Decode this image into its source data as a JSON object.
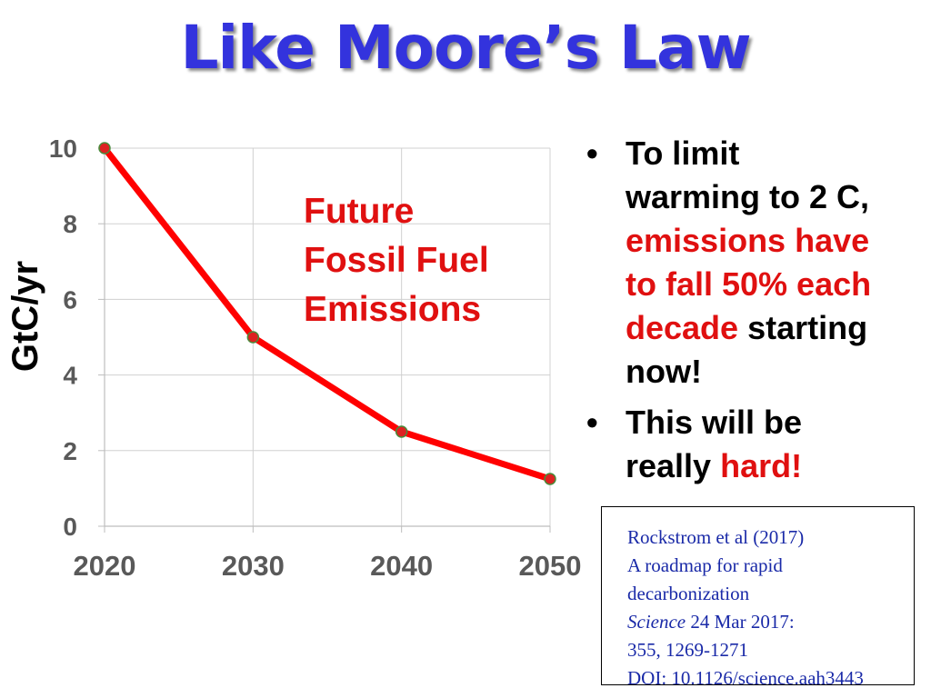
{
  "title": "Like Moore’s Law",
  "chart_data": {
    "type": "line",
    "ylabel": "GtC/yr",
    "xlabel": "",
    "x": [
      2020,
      2030,
      2040,
      2050
    ],
    "x_ticks": [
      "2020",
      "2030",
      "2040",
      "2050"
    ],
    "y_ticks": [
      "0",
      "2",
      "4",
      "6",
      "8",
      "10"
    ],
    "xlim": [
      2020,
      2050
    ],
    "ylim": [
      0,
      10
    ],
    "grid": true,
    "series": [
      {
        "values": [
          10,
          5,
          2.5,
          1.25
        ],
        "color": "#ff0000",
        "marker_color": "#dd2222",
        "marker_edge": "#4a8a3a"
      }
    ],
    "annotation": [
      "Future",
      "Fossil Fuel",
      "Emissions"
    ]
  },
  "bullets": {
    "b1": {
      "l1": "To limit",
      "l2": "warming to 2 C,",
      "l3": "emissions have",
      "l4": "to fall 50% each",
      "l5_red": "decade",
      "l5_black": " starting",
      "l6": "now!"
    },
    "b2": {
      "l1": "This will be",
      "l2_black": "really ",
      "l2_red": "hard!"
    }
  },
  "citation": {
    "line1": "Rockstrom et al (2017)",
    "line2": "A roadmap for rapid",
    "line3": "decarbonization",
    "journal": "Science",
    "date": "  24 Mar 2017:",
    "line5": "355, 1269-1271",
    "line6": "DOI: 10.1126/science.aah3443"
  }
}
